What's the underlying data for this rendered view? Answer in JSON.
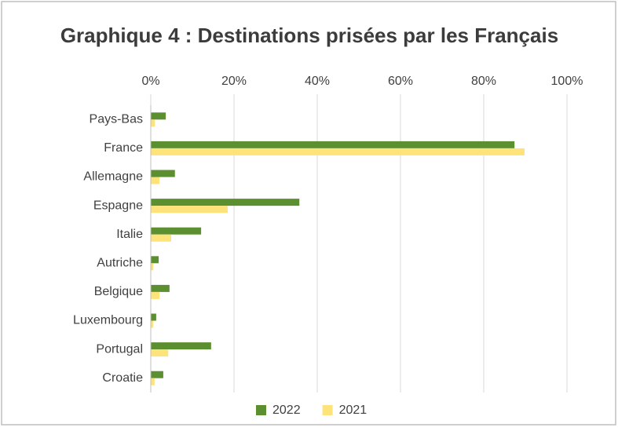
{
  "chart_data": {
    "type": "hbar",
    "title": "Graphique 4 : Destinations prisées par les Français",
    "categories": [
      "Pays-Bas",
      "France",
      "Allemagne",
      "Espagne",
      "Italie",
      "Autriche",
      "Belgique",
      "Luxembourg",
      "Portugal",
      "Croatie"
    ],
    "series": [
      {
        "name": "2022",
        "color": "#5b8f2f",
        "values": [
          3.6,
          87.4,
          5.8,
          35.7,
          12.1,
          1.9,
          4.5,
          1.3,
          14.5,
          3.0
        ]
      },
      {
        "name": "2021",
        "color": "#fee27a",
        "values": [
          1.0,
          89.8,
          2.1,
          18.5,
          4.9,
          0.6,
          2.1,
          0.6,
          4.2,
          0.9
        ]
      }
    ],
    "xlim": [
      0,
      100
    ],
    "xticks": [
      {
        "value": 0,
        "label": "0%"
      },
      {
        "value": 20,
        "label": "20%"
      },
      {
        "value": 40,
        "label": "40%"
      },
      {
        "value": 60,
        "label": "60%"
      },
      {
        "value": 80,
        "label": "80%"
      },
      {
        "value": 100,
        "label": "100%"
      }
    ],
    "grid": true,
    "legend": "bottom"
  }
}
